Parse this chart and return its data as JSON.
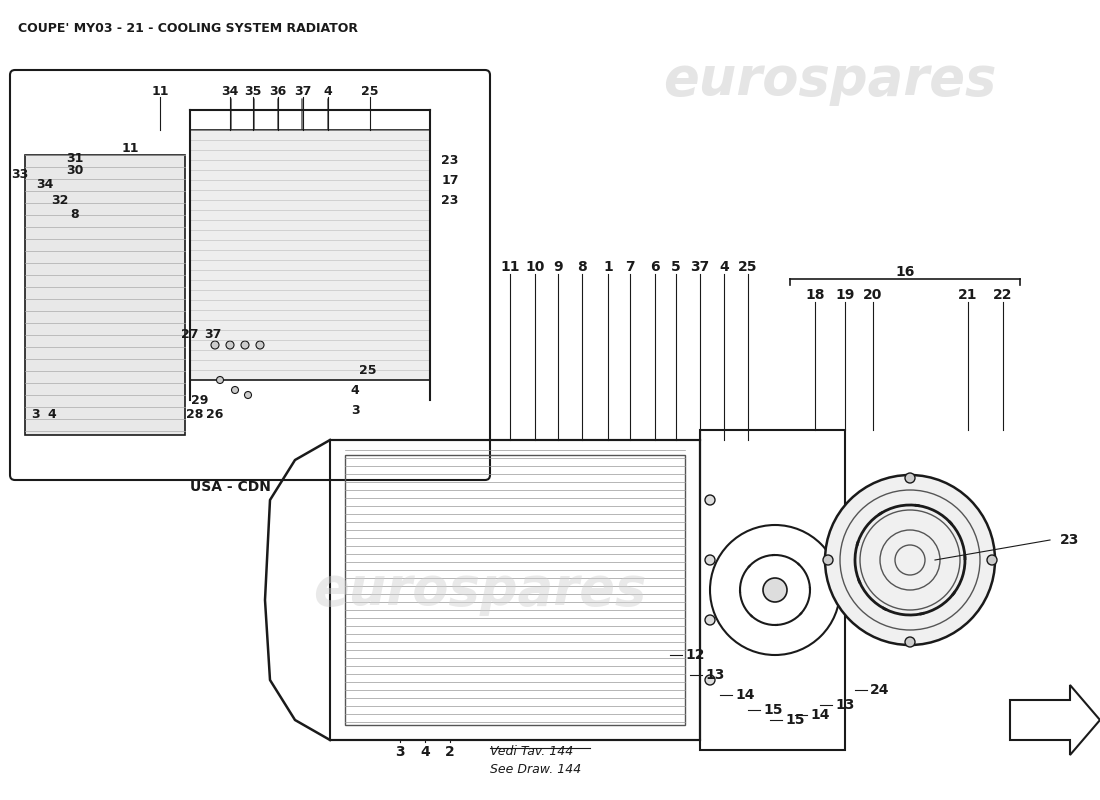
{
  "title": "COUPE' MY03 - 21 - COOLING SYSTEM RADIATOR",
  "title_fontsize": 9,
  "bg_color": "#ffffff",
  "line_color": "#1a1a1a",
  "text_color": "#1a1a1a",
  "watermark_color": "#d0d0d0",
  "watermark_text": "eurospares",
  "usa_cdn_label": "USA - CDN",
  "vedi_tav": "Vedi Tav. 144",
  "see_draw": "See Draw. 144",
  "inset_labels_top": [
    "11",
    "34",
    "35",
    "36",
    "37",
    "4",
    "25"
  ],
  "inset_labels_left": [
    "33",
    "34",
    "32",
    "8",
    "31",
    "30",
    "11"
  ],
  "inset_labels_right": [
    "23",
    "17",
    "23"
  ],
  "inset_labels_bottom_right": [
    "25",
    "4",
    "3"
  ],
  "inset_labels_bottom": [
    "28",
    "26",
    "29"
  ],
  "inset_labels_mid": [
    "27",
    "37"
  ],
  "inset_labels_corner": [
    "3",
    "4"
  ],
  "main_labels_top_left": [
    "11",
    "10",
    "9",
    "8",
    "1",
    "7",
    "6",
    "5",
    "37",
    "4",
    "25"
  ],
  "main_labels_top_right_bracket": "16",
  "main_labels_sub": [
    "18",
    "19",
    "20",
    "21",
    "22"
  ],
  "main_labels_bottom": [
    "3",
    "4",
    "2"
  ],
  "main_labels_right": [
    "12",
    "13",
    "14",
    "15",
    "15",
    "14",
    "13",
    "24"
  ],
  "main_label_23": "23"
}
